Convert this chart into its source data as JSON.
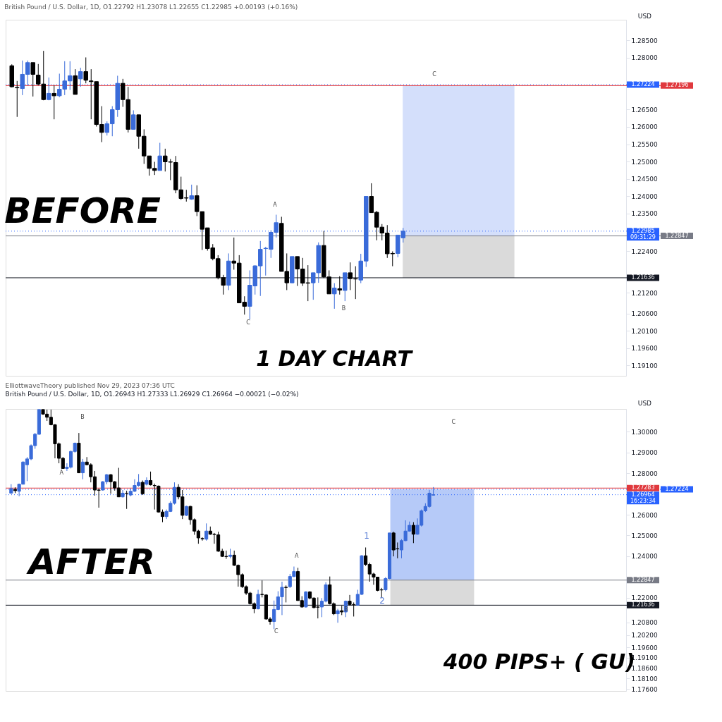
{
  "chart_data": [
    {
      "type": "candlestick",
      "title": "British Pound / U.S. Dollar, 1D, O1.22792 H1.23078 L1.22655 C1.22985 +0.00193 (+0.16%)",
      "categories": [
        null,
        null,
        null,
        null,
        null,
        null,
        null,
        null,
        null,
        null,
        null,
        null,
        null,
        null,
        null,
        null,
        null,
        null,
        null,
        null,
        null,
        null,
        null,
        null,
        null,
        null,
        null,
        null,
        null,
        null,
        null,
        null,
        null,
        null,
        null,
        null,
        null,
        null,
        null,
        null,
        null,
        null,
        null,
        null,
        null,
        null,
        null,
        null,
        null,
        null,
        null,
        null,
        null,
        null,
        null,
        null,
        null,
        null,
        null,
        null,
        null,
        null,
        null,
        null,
        null,
        null,
        null,
        null,
        null,
        null,
        null,
        null,
        null,
        null,
        null,
        null,
        null,
        null,
        null,
        null,
        null,
        null,
        null,
        null,
        null,
        null,
        null,
        null,
        null,
        null,
        null,
        null,
        null,
        null,
        null,
        null,
        null,
        null,
        null,
        null,
        null,
        null,
        null,
        null,
        null,
        null,
        null,
        null,
        null,
        null,
        null,
        null,
        null,
        null,
        null,
        null
      ],
      "ohlc": [
        [
          1.2777,
          1.2781,
          1.2714,
          1.2716
        ],
        [
          1.2714,
          1.2733,
          1.2629,
          1.2713
        ],
        [
          1.2711,
          1.2792,
          1.2692,
          1.2752
        ],
        [
          1.2752,
          1.2792,
          1.272,
          1.2786
        ],
        [
          1.2786,
          1.2786,
          1.2688,
          1.2752
        ],
        [
          1.275,
          1.2782,
          1.272,
          1.2724
        ],
        [
          1.2724,
          1.282,
          1.2677,
          1.2679
        ],
        [
          1.2679,
          1.2743,
          1.2677,
          1.2697
        ],
        [
          1.2697,
          1.272,
          1.2622,
          1.269
        ],
        [
          1.269,
          1.2754,
          1.2686,
          1.2709
        ],
        [
          1.2709,
          1.279,
          1.2692,
          1.2733
        ],
        [
          1.2733,
          1.279,
          1.2707,
          1.2748
        ],
        [
          1.2748,
          1.2767,
          1.2694,
          1.2694
        ],
        [
          1.2739,
          1.2771,
          1.2716,
          1.276
        ],
        [
          1.276,
          1.2801,
          1.2726,
          1.2735
        ],
        [
          1.2733,
          1.2767,
          1.2622,
          1.2731
        ],
        [
          1.2731,
          1.2731,
          1.2601,
          1.2607
        ],
        [
          1.2607,
          1.266,
          1.2556,
          1.2584
        ],
        [
          1.2584,
          1.2616,
          1.2575,
          1.2609
        ],
        [
          1.2609,
          1.266,
          1.2573,
          1.265
        ],
        [
          1.265,
          1.2748,
          1.2629,
          1.2726
        ],
        [
          1.2726,
          1.2739,
          1.2658,
          1.2679
        ],
        [
          1.2679,
          1.2716,
          1.2584,
          1.2593
        ],
        [
          1.2593,
          1.2648,
          1.2593,
          1.2635
        ],
        [
          1.2635,
          1.2635,
          1.2537,
          1.2573
        ],
        [
          1.2573,
          1.2593,
          1.2493,
          1.2516
        ],
        [
          1.2516,
          1.2516,
          1.2459,
          1.248
        ],
        [
          1.248,
          1.2499,
          1.2461,
          1.2474
        ],
        [
          1.2474,
          1.2554,
          1.2474,
          1.2516
        ],
        [
          1.2516,
          1.2537,
          1.2471,
          1.2499
        ],
        [
          1.2499,
          1.2507,
          1.2446,
          1.2498
        ],
        [
          1.2497,
          1.2516,
          1.2408,
          1.2418
        ],
        [
          1.2418,
          1.2456,
          1.2389,
          1.2393
        ],
        [
          1.2395,
          1.2418,
          1.2384,
          1.2394
        ],
        [
          1.2391,
          1.2433,
          1.2389,
          1.2401
        ],
        [
          1.2401,
          1.2431,
          1.2342,
          1.2355
        ],
        [
          1.2355,
          1.2355,
          1.2244,
          1.2304
        ],
        [
          1.2308,
          1.2308,
          1.2242,
          1.2248
        ],
        [
          1.225,
          1.2261,
          1.2214,
          1.2219
        ],
        [
          1.2219,
          1.2229,
          1.2159,
          1.2164
        ],
        [
          1.2164,
          1.2172,
          1.2115,
          1.2142
        ],
        [
          1.2142,
          1.2234,
          1.2128,
          1.2212
        ],
        [
          1.2212,
          1.228,
          1.2187,
          1.2206
        ],
        [
          1.2206,
          1.2229,
          1.2091,
          1.2091
        ],
        [
          1.2093,
          1.211,
          1.2057,
          1.2081
        ],
        [
          1.2081,
          1.2185,
          1.2043,
          1.2142
        ],
        [
          1.214,
          1.22,
          1.2115,
          1.2198
        ],
        [
          1.2198,
          1.227,
          1.2111,
          1.2246
        ],
        [
          1.2248,
          1.2253,
          1.217,
          1.2249
        ],
        [
          1.2246,
          1.2301,
          1.2221,
          1.2295
        ],
        [
          1.2295,
          1.2346,
          1.228,
          1.2323
        ],
        [
          1.2321,
          1.234,
          1.2182,
          1.2182
        ],
        [
          1.2182,
          1.2234,
          1.2128,
          1.2149
        ],
        [
          1.2149,
          1.2225,
          1.2148,
          1.2225
        ],
        [
          1.2225,
          1.2225,
          1.214,
          1.2189
        ],
        [
          1.2189,
          1.2221,
          1.214,
          1.2148
        ],
        [
          1.2149,
          1.22,
          1.2096,
          1.2148
        ],
        [
          1.2149,
          1.2178,
          1.21,
          1.2178
        ],
        [
          1.2178,
          1.2266,
          1.2149,
          1.2257
        ],
        [
          1.2257,
          1.2299,
          1.2163,
          1.2166
        ],
        [
          1.2166,
          1.2185,
          1.2117,
          1.2117
        ],
        [
          1.2117,
          1.2148,
          1.2074,
          1.2134
        ],
        [
          1.2132,
          1.2168,
          1.2115,
          1.2128
        ],
        [
          1.2127,
          1.2178,
          1.2096,
          1.2178
        ],
        [
          1.2178,
          1.2208,
          1.2128,
          1.2161
        ],
        [
          1.2161,
          1.2197,
          1.2102,
          1.216
        ],
        [
          1.2157,
          1.2233,
          1.2148,
          1.2212
        ],
        [
          1.2212,
          1.2399,
          1.2195,
          1.2399
        ],
        [
          1.2399,
          1.2437,
          1.2352,
          1.2352
        ],
        [
          1.2353,
          1.2357,
          1.2272,
          1.231
        ],
        [
          1.231,
          1.2319,
          1.2272,
          1.2293
        ],
        [
          1.2293,
          1.2316,
          1.2221,
          1.2233
        ],
        [
          1.2234,
          1.224,
          1.2197,
          1.2233
        ],
        [
          1.2234,
          1.2287,
          1.2223,
          1.2287
        ],
        [
          1.22792,
          1.23078,
          1.22655,
          1.22985
        ],
        null,
        null,
        null,
        null,
        null,
        null,
        null,
        null,
        null,
        null,
        null,
        null,
        null,
        null,
        null,
        null,
        null,
        null,
        null,
        null,
        null,
        null,
        null,
        null,
        null,
        null,
        null,
        null,
        null,
        null,
        null,
        null,
        null,
        null,
        null,
        null,
        null,
        null,
        null,
        null,
        null
      ],
      "ylim": [
        1.188,
        1.291
      ],
      "yticks": [
        {
          "value": 1.285,
          "label": "1.28500"
        },
        {
          "value": 1.28,
          "label": "1.28000"
        },
        {
          "value": 1.265,
          "label": "1.26500"
        },
        {
          "value": 1.26,
          "label": "1.26000"
        },
        {
          "value": 1.255,
          "label": "1.25500"
        },
        {
          "value": 1.25,
          "label": "1.25000"
        },
        {
          "value": 1.245,
          "label": "1.24500"
        },
        {
          "value": 1.24,
          "label": "1.24000"
        },
        {
          "value": 1.235,
          "label": "1.23500"
        },
        {
          "value": 1.224,
          "label": "1.22400"
        },
        {
          "value": 1.212,
          "label": "1.21200"
        },
        {
          "value": 1.206,
          "label": "1.20600"
        },
        {
          "value": 1.201,
          "label": "1.20100"
        },
        {
          "value": 1.196,
          "label": "1.19600"
        },
        {
          "value": 1.191,
          "label": "1.19100"
        }
      ],
      "tick_labels": "y",
      "bands": [
        {
          "axis": "y",
          "from": 1.22847,
          "to": 1.27196,
          "color": "#cfdcfb"
        },
        {
          "axis": "y",
          "from": 1.21636,
          "to": 1.22847,
          "color": "#d6d6d6"
        }
      ],
      "ref_lines": [
        {
          "axis": "y",
          "value": 1.27224,
          "label": "1.27224",
          "color": "#2962ff",
          "line_style": "dotted"
        },
        {
          "axis": "y",
          "value": 1.27196,
          "label": "1.27196",
          "color": "#e0393e",
          "line_style": "solid"
        },
        {
          "axis": "y",
          "value": 1.22985,
          "label": "1.22985\n09:31:29",
          "color": "#2962ff",
          "line_style": "dotted"
        },
        {
          "axis": "y",
          "value": 1.22847,
          "label": "1.22847",
          "color": "#787b86",
          "line_style": "solid"
        },
        {
          "axis": "y",
          "value": 1.21636,
          "label": "1.21636",
          "color": "#131722",
          "line_style": "solid"
        }
      ],
      "annotations": [
        "BEFORE",
        "1 DAY CHART",
        "USD",
        "A",
        "C",
        "B",
        "C"
      ]
    },
    {
      "type": "candlestick",
      "title": "ElliottwaveTheory published Nov 29, 2023 07:36 UTC",
      "subtitle": "British Pound / U.S. Dollar, 1D, O1.26943 H1.27333 L1.26929 C1.26964 −0.00021 (−0.02%)",
      "categories": [
        null,
        null,
        null,
        null,
        null,
        null,
        null,
        null,
        null,
        null,
        null,
        null,
        null,
        null,
        null,
        null,
        null,
        null,
        null,
        null,
        null,
        null,
        null,
        null,
        null,
        null,
        null,
        null,
        null,
        null,
        null,
        null,
        null,
        null,
        null,
        null,
        null,
        null,
        null,
        null,
        null,
        null,
        null,
        null,
        null,
        null,
        null,
        null,
        null,
        null,
        null,
        null,
        null,
        null,
        null,
        null,
        null,
        null,
        null,
        null,
        null,
        null,
        null,
        null,
        null,
        null,
        null,
        null,
        null,
        null,
        null,
        null,
        null,
        null,
        null,
        null,
        null,
        null,
        null,
        null,
        null,
        null,
        null,
        null,
        null,
        null,
        null,
        null,
        null,
        null,
        null,
        null,
        null,
        null,
        null,
        null,
        null,
        null,
        null,
        null,
        null,
        null,
        null,
        null,
        null,
        null,
        null,
        null,
        null,
        null,
        null,
        null,
        null,
        null,
        null,
        null,
        null,
        null,
        null,
        null,
        null,
        null,
        null,
        null,
        null,
        null,
        null,
        null,
        null,
        null,
        null,
        null,
        null,
        null,
        null,
        null,
        null,
        null,
        null,
        null,
        null,
        null,
        null,
        null,
        null,
        null,
        null,
        null,
        null,
        null,
        null,
        null,
        null,
        null
      ],
      "ohlc": [
        [
          1.2704,
          1.2747,
          1.2701,
          1.2726
        ],
        [
          1.2722,
          1.2732,
          1.2704,
          1.2716
        ],
        [
          1.2713,
          1.275,
          1.2689,
          1.2747
        ],
        [
          1.2747,
          1.2857,
          1.2747,
          1.2854
        ],
        [
          1.2841,
          1.2878,
          1.2762,
          1.2869
        ],
        [
          1.2869,
          1.2939,
          1.2863,
          1.2933
        ],
        [
          1.2933,
          1.2994,
          1.2918,
          1.2988
        ],
        [
          1.2988,
          1.3107,
          1.2985,
          1.3107
        ],
        [
          1.3107,
          1.3107,
          1.3082,
          1.3085
        ],
        [
          1.3085,
          1.3107,
          1.3052,
          1.307
        ],
        [
          1.307,
          1.3107,
          1.3031,
          1.3034
        ],
        [
          1.3034,
          1.3037,
          1.2872,
          1.2942
        ],
        [
          1.2942,
          1.2948,
          1.2848,
          1.2872
        ],
        [
          1.2872,
          1.2878,
          1.2823,
          1.2823
        ],
        [
          1.2823,
          1.2848,
          1.2811,
          1.2829
        ],
        [
          1.2829,
          1.2909,
          1.2823,
          1.2905
        ],
        [
          1.2905,
          1.2948,
          1.2899,
          1.2945
        ],
        [
          1.2945,
          1.2994,
          1.2802,
          1.2802
        ],
        [
          1.2802,
          1.2869,
          1.2771,
          1.2854
        ],
        [
          1.2854,
          1.2878,
          1.2838,
          1.2841
        ],
        [
          1.2841,
          1.2848,
          1.2756,
          1.2783
        ],
        [
          1.2783,
          1.2811,
          1.2692,
          1.2719
        ],
        [
          1.2719,
          1.2726,
          1.2634,
          1.2718
        ],
        [
          1.2719,
          1.2762,
          1.2716,
          1.2759
        ],
        [
          1.2759,
          1.2796,
          1.2747,
          1.2793
        ],
        [
          1.2793,
          1.2796,
          1.2701,
          1.2759
        ],
        [
          1.2759,
          1.2762,
          1.2716,
          1.2729
        ],
        [
          1.2729,
          1.2826,
          1.2686,
          1.2686
        ],
        [
          1.2686,
          1.2719,
          1.2683,
          1.2704
        ],
        [
          1.2704,
          1.2716,
          1.2628,
          1.2703
        ],
        [
          1.2695,
          1.2726,
          1.2689,
          1.2713
        ],
        [
          1.2713,
          1.2771,
          1.271,
          1.2741
        ],
        [
          1.2741,
          1.2796,
          1.2735,
          1.2756
        ],
        [
          1.2756,
          1.2765,
          1.2695,
          1.2701
        ],
        [
          1.2747,
          1.278,
          1.2741,
          1.2765
        ],
        [
          1.2765,
          1.2808,
          1.2741,
          1.2744
        ],
        [
          1.2741,
          1.275,
          1.2625,
          1.274
        ],
        [
          1.2738,
          1.2741,
          1.261,
          1.2613
        ],
        [
          1.2613,
          1.2625,
          1.2564,
          1.2591
        ],
        [
          1.2591,
          1.2625,
          1.2579,
          1.2616
        ],
        [
          1.2616,
          1.2665,
          1.2613,
          1.2655
        ],
        [
          1.2655,
          1.2756,
          1.2649,
          1.2732
        ],
        [
          1.2732,
          1.2747,
          1.2674,
          1.2686
        ],
        [
          1.2686,
          1.2719,
          1.2579,
          1.2597
        ],
        [
          1.2597,
          1.2643,
          1.2594,
          1.264
        ],
        [
          1.264,
          1.2643,
          1.2552,
          1.2576
        ],
        [
          1.2576,
          1.2582,
          1.2503,
          1.2521
        ],
        [
          1.2521,
          1.2527,
          1.246,
          1.2488
        ],
        [
          1.2485,
          1.2491,
          1.2475,
          1.2484
        ],
        [
          1.2482,
          1.2558,
          1.2475,
          1.2521
        ],
        [
          1.2521,
          1.2543,
          1.2503,
          1.2506
        ],
        [
          1.2506,
          1.2512,
          1.246,
          1.2505
        ],
        [
          1.2503,
          1.2518,
          1.2421,
          1.2424
        ],
        [
          1.2424,
          1.2436,
          1.2396,
          1.2399
        ],
        [
          1.2399,
          1.2427,
          1.2387,
          1.2398
        ],
        [
          1.2399,
          1.2436,
          1.239,
          1.2405
        ],
        [
          1.2405,
          1.2427,
          1.2353,
          1.2356
        ],
        [
          1.2356,
          1.236,
          1.2253,
          1.2311
        ],
        [
          1.2311,
          1.2317,
          1.2247,
          1.2253
        ],
        [
          1.2253,
          1.2259,
          1.2213,
          1.2222
        ],
        [
          1.2222,
          1.2228,
          1.2167,
          1.2171
        ],
        [
          1.2171,
          1.2177,
          1.2125,
          1.2146
        ],
        [
          1.2146,
          1.2238,
          1.2143,
          1.2216
        ],
        [
          1.2216,
          1.2283,
          1.2201,
          1.2215
        ],
        [
          1.2213,
          1.2216,
          1.2094,
          1.2097
        ],
        [
          1.2097,
          1.2106,
          1.207,
          1.2085
        ],
        [
          1.2085,
          1.2186,
          1.2048,
          1.2143
        ],
        [
          1.2143,
          1.2231,
          1.214,
          1.2204
        ],
        [
          1.2204,
          1.2277,
          1.2116,
          1.225
        ],
        [
          1.225,
          1.2259,
          1.2177,
          1.2249
        ],
        [
          1.2253,
          1.2314,
          1.2247,
          1.2302
        ],
        [
          1.2302,
          1.235,
          1.2299,
          1.2326
        ],
        [
          1.2326,
          1.2344,
          1.2186,
          1.2186
        ],
        [
          1.2186,
          1.2207,
          1.2152,
          1.2155
        ],
        [
          1.2155,
          1.2231,
          1.2152,
          1.2228
        ],
        [
          1.2228,
          1.2231,
          1.2192,
          1.2198
        ],
        [
          1.2198,
          1.2201,
          1.2149,
          1.2152
        ],
        [
          1.2155,
          1.2201,
          1.21,
          1.2154
        ],
        [
          1.2155,
          1.2198,
          1.2106,
          1.2183
        ],
        [
          1.2183,
          1.2274,
          1.2177,
          1.2262
        ],
        [
          1.2262,
          1.2302,
          1.2167,
          1.2171
        ],
        [
          1.2171,
          1.2177,
          1.2116,
          1.2122
        ],
        [
          1.2122,
          1.2146,
          1.2079,
          1.2137
        ],
        [
          1.2137,
          1.2161,
          1.2116,
          1.2131
        ],
        [
          1.2131,
          1.2186,
          1.2106,
          1.2183
        ],
        [
          1.2183,
          1.2213,
          1.2161,
          1.2167
        ],
        [
          1.2167,
          1.2177,
          1.2109,
          1.2166
        ],
        [
          1.2164,
          1.2238,
          1.2161,
          1.2216
        ],
        [
          1.2216,
          1.2405,
          1.2213,
          1.2402
        ],
        [
          1.2402,
          1.2442,
          1.2353,
          1.236
        ],
        [
          1.236,
          1.2369,
          1.2277,
          1.2314
        ],
        [
          1.2314,
          1.232,
          1.2262,
          1.2299
        ],
        [
          1.2299,
          1.2299,
          1.2231,
          1.2235
        ],
        [
          1.2238,
          1.2247,
          1.2198,
          1.2237
        ],
        [
          1.2238,
          1.2299,
          1.2231,
          1.2292
        ],
        [
          1.2292,
          1.2512,
          1.2289,
          1.2512
        ],
        [
          1.2512,
          1.2518,
          1.2399,
          1.243
        ],
        [
          1.2436,
          1.2466,
          1.239,
          1.2435
        ],
        [
          1.243,
          1.2482,
          1.239,
          1.2475
        ],
        [
          1.2475,
          1.2573,
          1.2472,
          1.2521
        ],
        [
          1.2521,
          1.2567,
          1.2518,
          1.2549
        ],
        [
          1.2549,
          1.2564,
          1.2463,
          1.2506
        ],
        [
          1.2506,
          1.2582,
          1.2503,
          1.2549
        ],
        [
          1.2549,
          1.2625,
          1.2543,
          1.2619
        ],
        [
          1.2619,
          1.2655,
          1.2613,
          1.264
        ],
        [
          1.264,
          1.2719,
          1.2634,
          1.2704
        ],
        [
          1.26943,
          1.27333,
          1.26929,
          1.26964
        ],
        null,
        null,
        null,
        null,
        null,
        null,
        null,
        null,
        null,
        null,
        null,
        null,
        null,
        null,
        null,
        null,
        null,
        null,
        null,
        null,
        null,
        null,
        null,
        null,
        null,
        null,
        null,
        null,
        null,
        null,
        null,
        null,
        null,
        null,
        null,
        null,
        null,
        null,
        null,
        null,
        null,
        null,
        null,
        null,
        null,
        null,
        null
      ],
      "ylim": [
        1.175,
        1.311
      ],
      "yticks": [
        {
          "value": 1.3,
          "label": "1.30000"
        },
        {
          "value": 1.29,
          "label": "1.29000"
        },
        {
          "value": 1.28,
          "label": "1.28000"
        },
        {
          "value": 1.26,
          "label": "1.26000"
        },
        {
          "value": 1.25,
          "label": "1.25000"
        },
        {
          "value": 1.24,
          "label": "1.24000"
        },
        {
          "value": 1.22,
          "label": "1.22000"
        },
        {
          "value": 1.208,
          "label": "1.20800"
        },
        {
          "value": 1.202,
          "label": "1.20200"
        },
        {
          "value": 1.196,
          "label": "1.19600"
        },
        {
          "value": 1.191,
          "label": "1.19100"
        },
        {
          "value": 1.186,
          "label": "1.18600"
        },
        {
          "value": 1.181,
          "label": "1.18100"
        },
        {
          "value": 1.176,
          "label": "1.17600"
        }
      ],
      "tick_labels": "y",
      "bands": [
        {
          "axis": "y",
          "from": 1.22847,
          "to": 1.27224,
          "color": "#aec4f7"
        },
        {
          "axis": "y",
          "from": 1.21636,
          "to": 1.22847,
          "color": "#d6d6d6"
        }
      ],
      "ref_lines": [
        {
          "axis": "y",
          "value": 1.27283,
          "label": "1.27283",
          "color": "#e0393e",
          "line_style": "solid"
        },
        {
          "axis": "y",
          "value": 1.27224,
          "label": "1.27224",
          "color": "#2962ff",
          "line_style": "dotted"
        },
        {
          "axis": "y",
          "value": 1.26964,
          "label": "1.26964\n16:23:34",
          "color": "#2962ff",
          "line_style": "dotted"
        },
        {
          "axis": "y",
          "value": 1.22847,
          "label": "1.22847",
          "color": "#787b86",
          "line_style": "solid"
        },
        {
          "axis": "y",
          "value": 1.21636,
          "label": "1.21636",
          "color": "#131722",
          "line_style": "solid"
        }
      ],
      "annotations": [
        "AFTER",
        "400 PIPS+ ( GU)",
        "USD",
        "B",
        "A",
        "A",
        "C",
        "B",
        "C",
        "1",
        "2"
      ]
    }
  ]
}
